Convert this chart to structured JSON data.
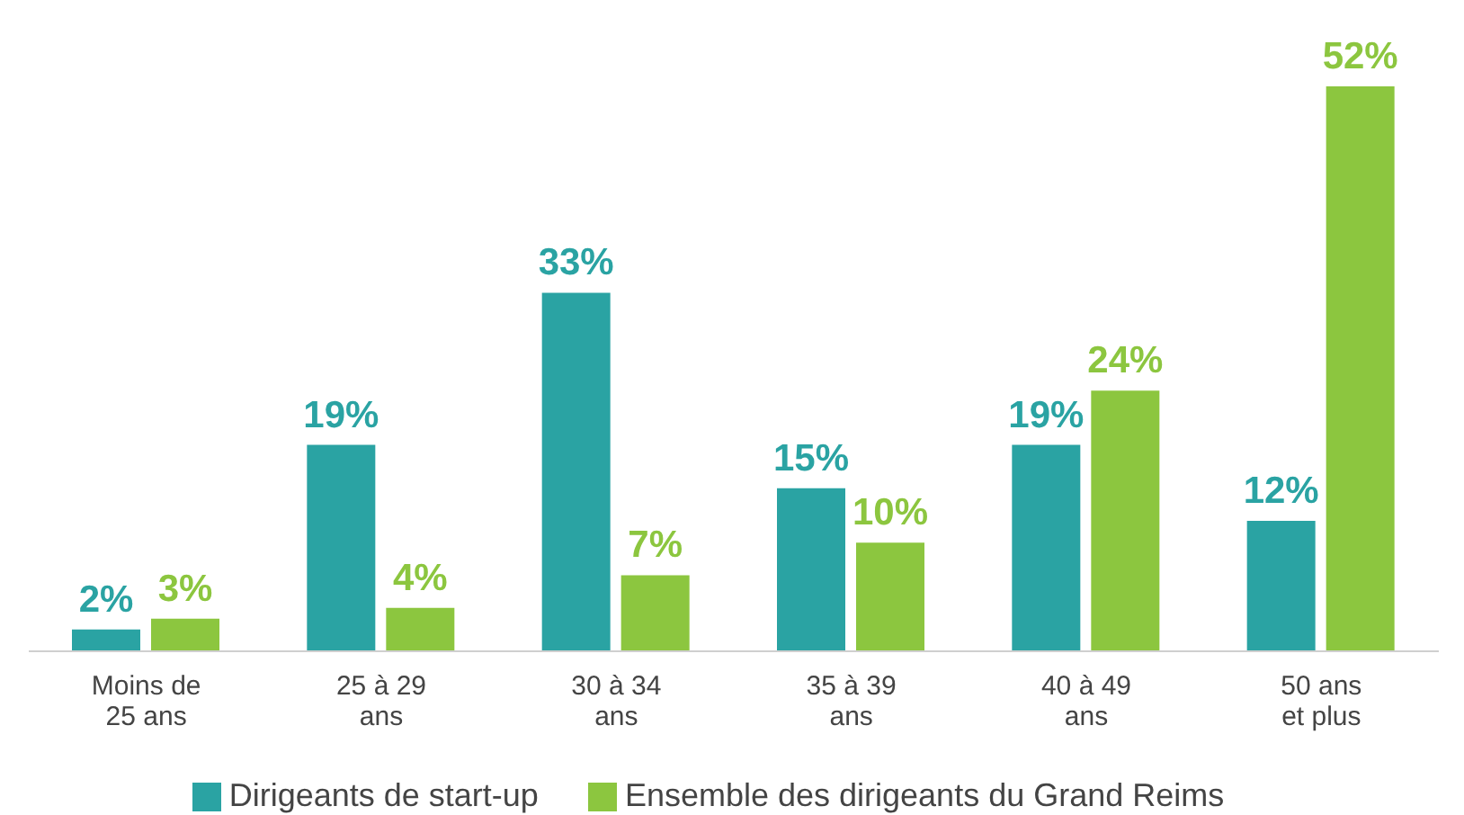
{
  "chart_data": {
    "type": "bar",
    "categories": [
      "Moins de 25 ans",
      "25 à 29 ans",
      "30 à 34 ans",
      "35 à 39 ans",
      "40 à 49 ans",
      "50 ans et plus"
    ],
    "series": [
      {
        "name": "Dirigeants de start-up",
        "color": "#2aa3a3",
        "values": [
          2,
          19,
          33,
          15,
          19,
          12
        ],
        "value_labels": [
          "2%",
          "19%",
          "33%",
          "15%",
          "19%",
          "12%"
        ]
      },
      {
        "name": "Ensemble des dirigeants du Grand Reims",
        "color": "#8cc63f",
        "values": [
          3,
          4,
          7,
          10,
          24,
          52
        ],
        "value_labels": [
          "3%",
          "4%",
          "7%",
          "10%",
          "24%",
          "52%"
        ]
      }
    ],
    "legend": "bottom"
  }
}
